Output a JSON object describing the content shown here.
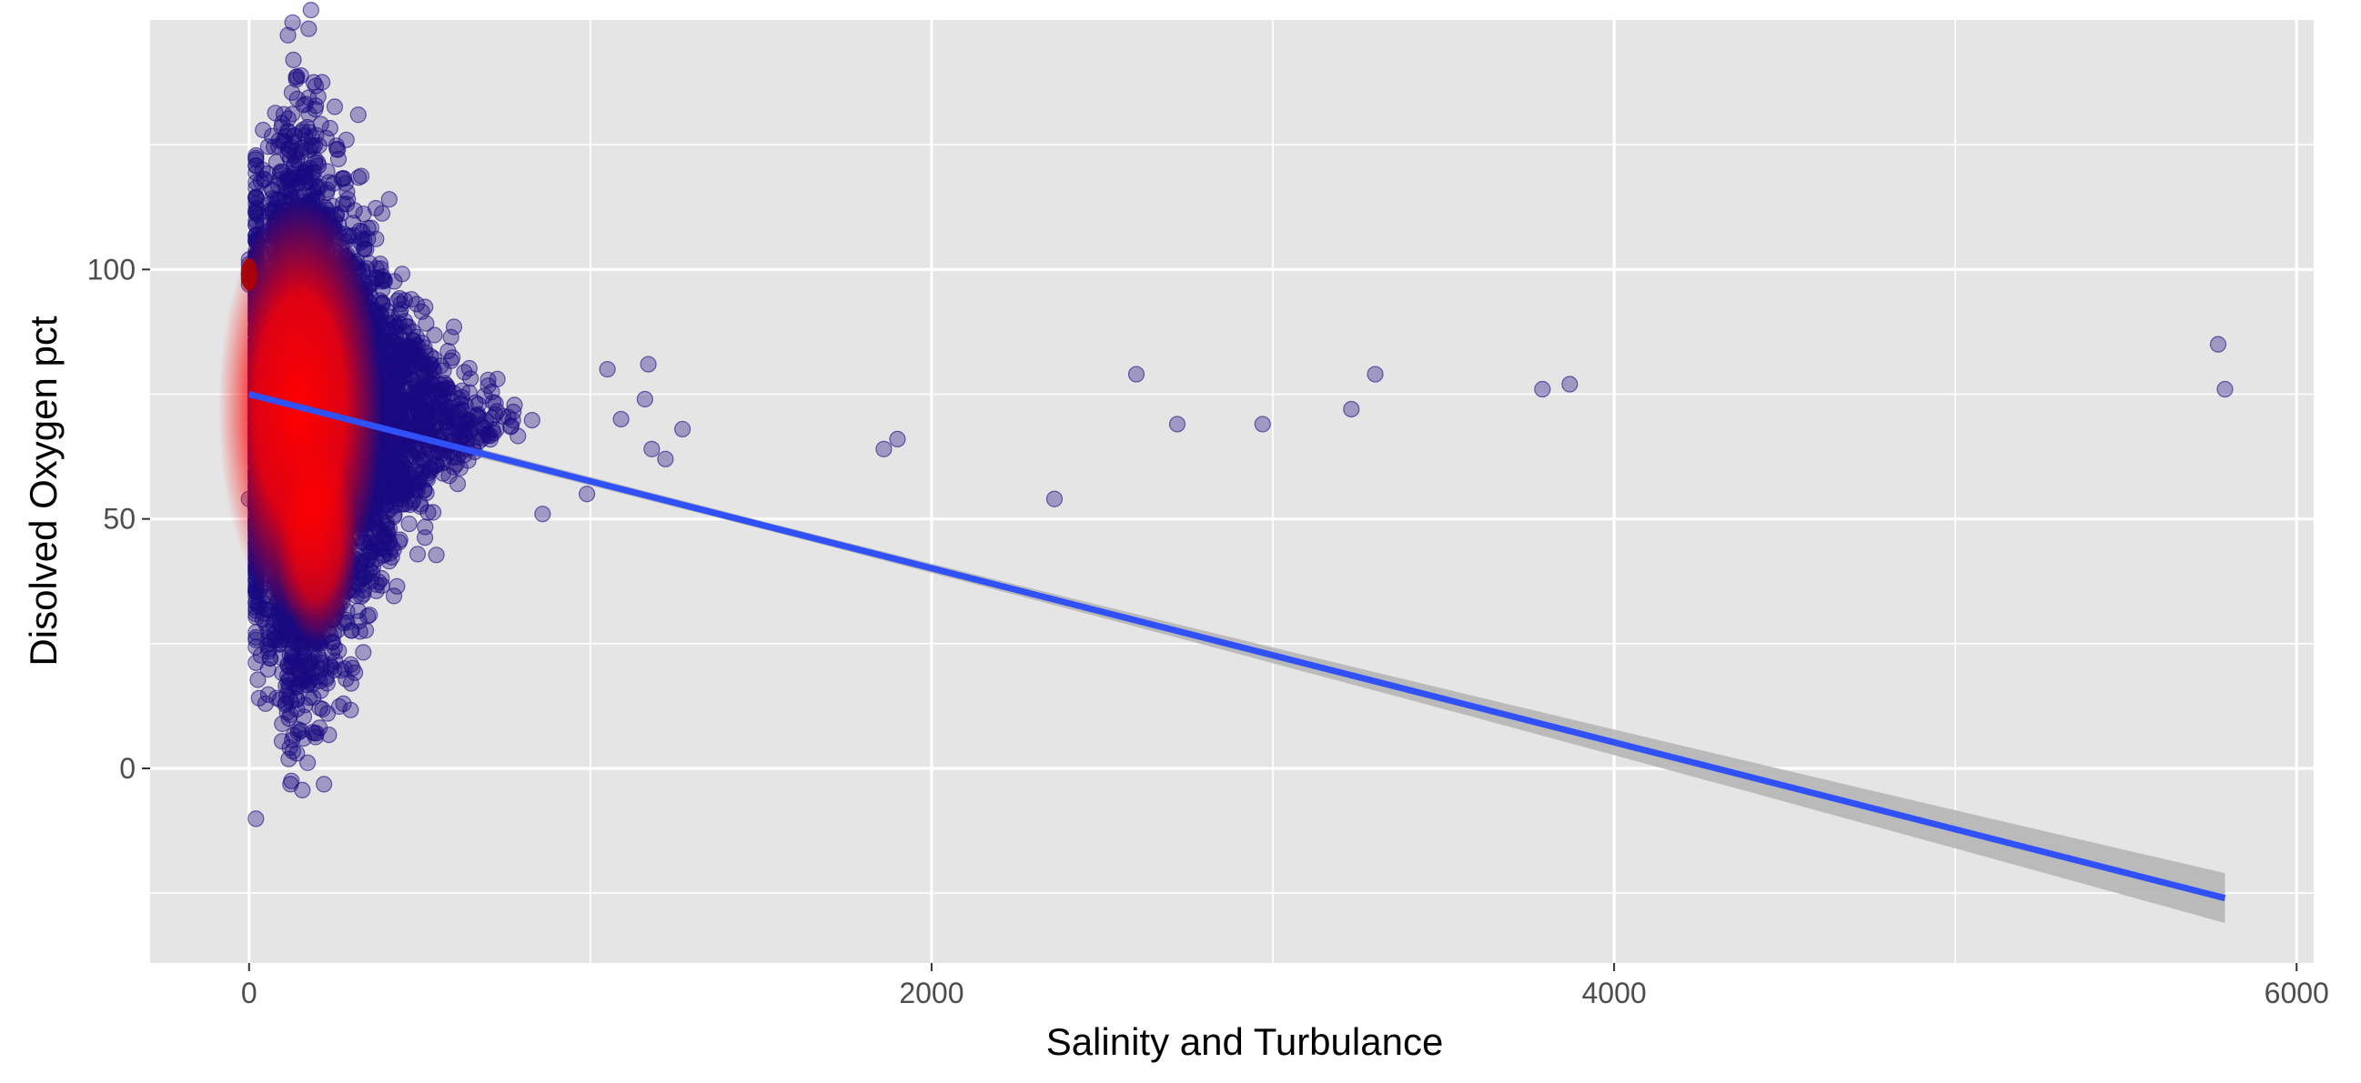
{
  "chart_data": {
    "type": "scatter",
    "xlabel": "Salinity and Turbulance",
    "ylabel": "Disolved Oxygen pct",
    "xlim": [
      -290,
      6050
    ],
    "ylim": [
      -39,
      150
    ],
    "x_ticks": [
      0,
      2000,
      4000,
      6000
    ],
    "x_tick_labels": [
      "0",
      "2000",
      "4000",
      "6000"
    ],
    "y_ticks": [
      0,
      50,
      100
    ],
    "y_tick_labels": [
      "0",
      "50",
      "100"
    ],
    "x_minor_ticks": [
      1000,
      3000,
      5000
    ],
    "y_minor_ticks": [
      -25,
      25,
      75,
      125
    ],
    "grid": true,
    "background": "#E5E5E5",
    "grid_color": "#FFFFFF",
    "point_color": "#1A0A80",
    "point_opacity": 0.35,
    "density_color": "#FF0000",
    "regression_color": "#3050F8",
    "ribbon_color": "#B3B3B3",
    "regression": {
      "x": [
        0,
        5790
      ],
      "y": [
        75,
        -26
      ],
      "ci_halfwidth_at_x": [
        [
          0,
          1
        ],
        [
          1500,
          0.8
        ],
        [
          5790,
          5
        ]
      ]
    },
    "cluster": {
      "x_center": 150,
      "x_spread": 160,
      "y_center": 70,
      "y_spread": 16,
      "approx_points": 9000
    },
    "outliers": [
      {
        "x": 1050,
        "y": 80
      },
      {
        "x": 1170,
        "y": 81
      },
      {
        "x": 1160,
        "y": 74
      },
      {
        "x": 1270,
        "y": 68
      },
      {
        "x": 1220,
        "y": 62
      },
      {
        "x": 1180,
        "y": 64
      },
      {
        "x": 1090,
        "y": 70
      },
      {
        "x": 1860,
        "y": 64
      },
      {
        "x": 1900,
        "y": 66
      },
      {
        "x": 2360,
        "y": 54
      },
      {
        "x": 2600,
        "y": 79
      },
      {
        "x": 2720,
        "y": 69
      },
      {
        "x": 2970,
        "y": 69
      },
      {
        "x": 3230,
        "y": 72
      },
      {
        "x": 3300,
        "y": 79
      },
      {
        "x": 3790,
        "y": 76
      },
      {
        "x": 3870,
        "y": 77
      },
      {
        "x": 5770,
        "y": 85
      },
      {
        "x": 5790,
        "y": 76
      },
      {
        "x": 130,
        "y": 142
      },
      {
        "x": 320,
        "y": 131
      },
      {
        "x": 260,
        "y": 124
      },
      {
        "x": 140,
        "y": 3
      },
      {
        "x": 160,
        "y": 6
      },
      {
        "x": 230,
        "y": 11
      },
      {
        "x": 280,
        "y": 20
      },
      {
        "x": 860,
        "y": 51
      },
      {
        "x": 990,
        "y": 55
      },
      {
        "x": 0,
        "y": 54
      },
      {
        "x": 0,
        "y": 101
      },
      {
        "x": 0,
        "y": 99
      },
      {
        "x": 0,
        "y": 97
      },
      {
        "x": 0,
        "y": 100
      },
      {
        "x": 0,
        "y": 102
      },
      {
        "x": 0,
        "y": 98
      }
    ]
  }
}
